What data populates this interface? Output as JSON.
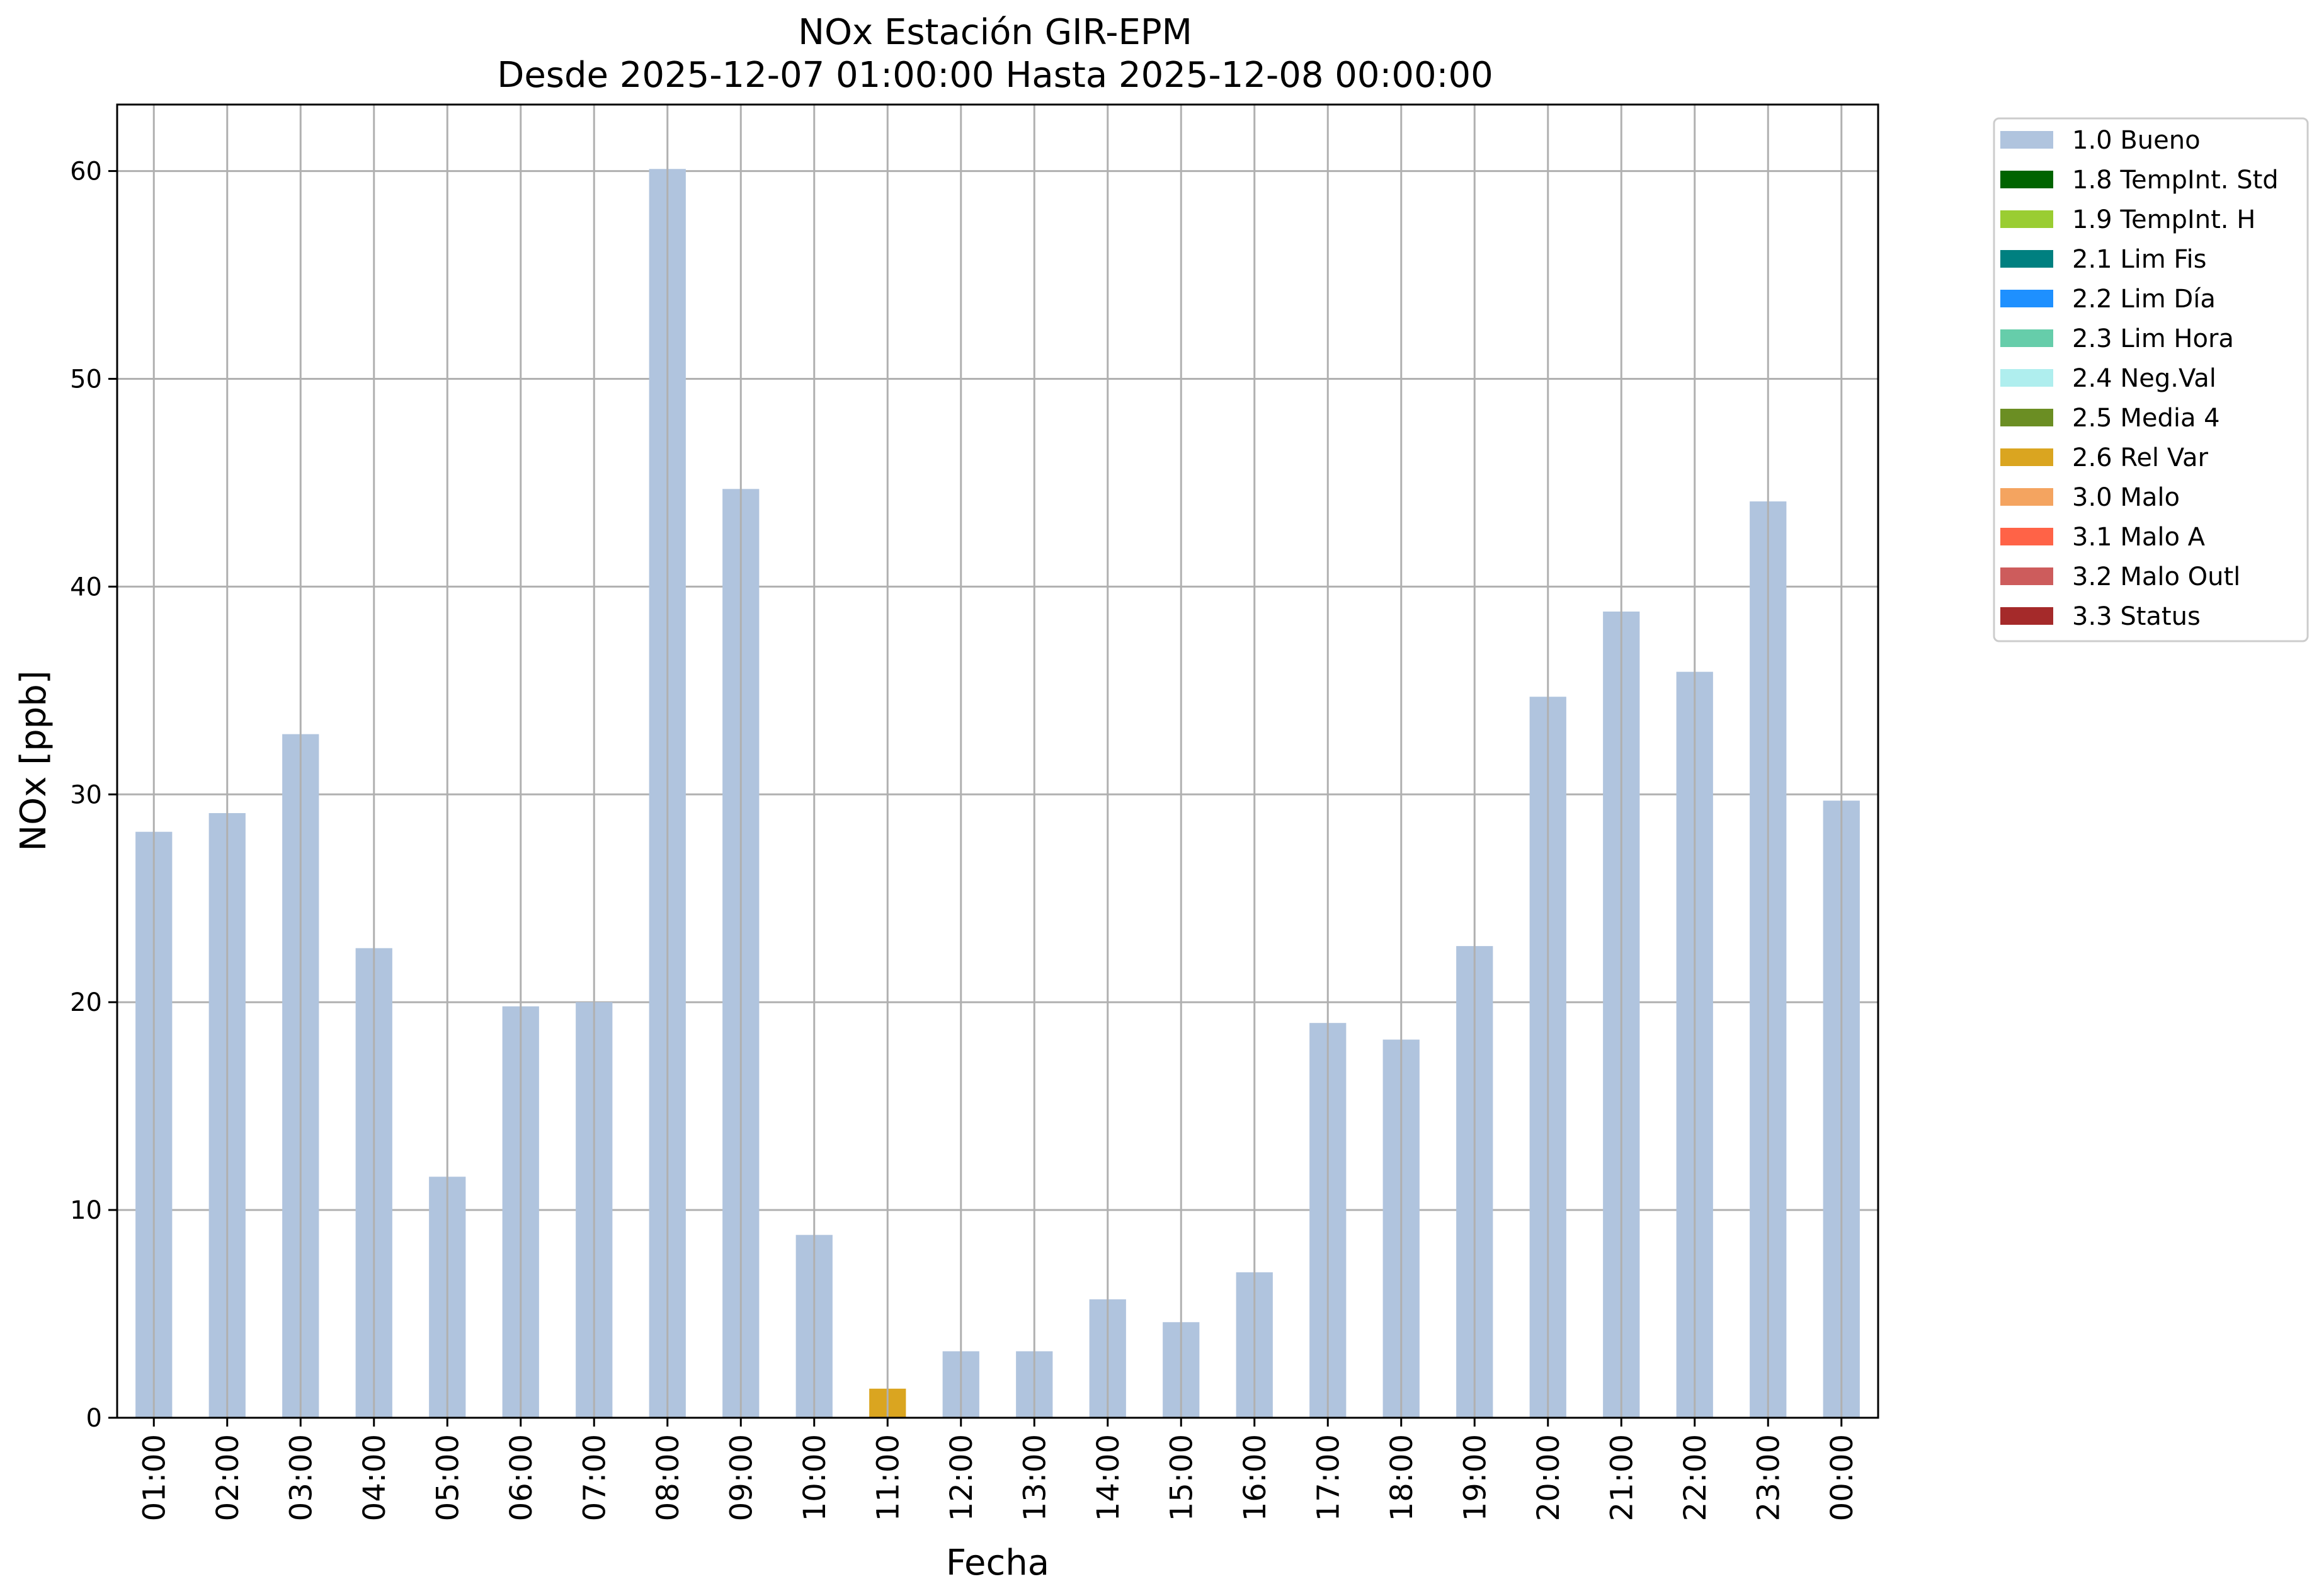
{
  "chart_data": {
    "type": "bar",
    "title": "NOx Estación GIR-EPM",
    "subtitle": "Desde 2025-12-07 01:00:00 Hasta 2025-12-08 00:00:00",
    "xlabel": "Fecha",
    "ylabel": "NOx [ppb]",
    "ylim": [
      0,
      63.2
    ],
    "yticks": [
      0,
      10,
      20,
      30,
      40,
      50,
      60
    ],
    "grid": true,
    "legend_position": "outside-top-right",
    "categories": [
      "01:00",
      "02:00",
      "03:00",
      "04:00",
      "05:00",
      "06:00",
      "07:00",
      "08:00",
      "09:00",
      "10:00",
      "11:00",
      "12:00",
      "13:00",
      "14:00",
      "15:00",
      "16:00",
      "17:00",
      "18:00",
      "19:00",
      "20:00",
      "21:00",
      "22:00",
      "23:00",
      "00:00"
    ],
    "values": [
      28.2,
      29.1,
      32.9,
      22.6,
      11.6,
      19.8,
      20.0,
      60.1,
      44.7,
      8.8,
      1.4,
      3.2,
      3.2,
      5.7,
      4.6,
      7.0,
      19.0,
      18.2,
      22.7,
      34.7,
      38.8,
      35.9,
      44.1,
      29.7
    ],
    "flags": [
      "1.0 Bueno",
      "1.0 Bueno",
      "1.0 Bueno",
      "1.0 Bueno",
      "1.0 Bueno",
      "1.0 Bueno",
      "1.0 Bueno",
      "1.0 Bueno",
      "1.0 Bueno",
      "1.0 Bueno",
      "2.6 Rel Var",
      "1.0 Bueno",
      "1.0 Bueno",
      "1.0 Bueno",
      "1.0 Bueno",
      "1.0 Bueno",
      "1.0 Bueno",
      "1.0 Bueno",
      "1.0 Bueno",
      "1.0 Bueno",
      "1.0 Bueno",
      "1.0 Bueno",
      "1.0 Bueno",
      "1.0 Bueno"
    ],
    "legend": [
      {
        "label": "1.0 Bueno",
        "color": "#b0c4de"
      },
      {
        "label": "1.8 TempInt. Std",
        "color": "#006400"
      },
      {
        "label": "1.9 TempInt. H",
        "color": "#9acd32"
      },
      {
        "label": "2.1 Lim Fis",
        "color": "#008080"
      },
      {
        "label": "2.2 Lim Día",
        "color": "#1e90ff"
      },
      {
        "label": "2.3 Lim Hora",
        "color": "#66cdaa"
      },
      {
        "label": "2.4 Neg.Val",
        "color": "#afeeee"
      },
      {
        "label": "2.5 Media 4",
        "color": "#6b8e23"
      },
      {
        "label": "2.6 Rel Var",
        "color": "#daa520"
      },
      {
        "label": "3.0 Malo",
        "color": "#f4a460"
      },
      {
        "label": "3.1 Malo A",
        "color": "#ff6347"
      },
      {
        "label": "3.2 Malo Outl",
        "color": "#cd5c5c"
      },
      {
        "label": "3.3 Status",
        "color": "#a52a2a"
      }
    ]
  }
}
